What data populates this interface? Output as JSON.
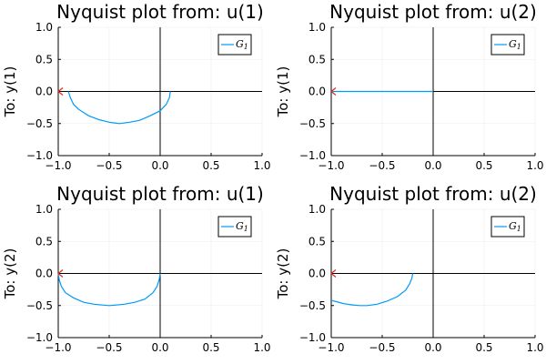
{
  "chart_data": [
    {
      "type": "line",
      "title": "Nyquist plot from: u(1)",
      "ylabel": "To: y(1)",
      "xlim": [
        -1,
        1
      ],
      "ylim": [
        -1,
        1
      ],
      "xticks": [
        "-1.0",
        "-0.5",
        "0.0",
        "0.5",
        "1.0"
      ],
      "yticks": [
        "-1.0",
        "-0.5",
        "0.0",
        "0.5",
        "1.0"
      ],
      "grid": true,
      "legend_position": "top-right",
      "series": [
        {
          "name": "G_1",
          "color": "#009AFA",
          "x": [
            0.1,
            0.09,
            0.06,
            0.0,
            -0.1,
            -0.2,
            -0.3,
            -0.4,
            -0.5,
            -0.6,
            -0.7,
            -0.8,
            -0.85,
            -0.88,
            -0.9
          ],
          "y": [
            0.0,
            -0.1,
            -0.2,
            -0.3,
            -0.38,
            -0.45,
            -0.48,
            -0.5,
            -0.48,
            -0.44,
            -0.38,
            -0.28,
            -0.2,
            -0.1,
            0.0
          ]
        }
      ],
      "critical_point": {
        "x": -1,
        "y": 0,
        "color": "#E0301E"
      }
    },
    {
      "type": "line",
      "title": "Nyquist plot from: u(2)",
      "ylabel": "To: y(1)",
      "xlim": [
        -1,
        1
      ],
      "ylim": [
        -1,
        1
      ],
      "xticks": [
        "-1.0",
        "-0.5",
        "0.0",
        "0.5",
        "1.0"
      ],
      "yticks": [
        "-1.0",
        "-0.5",
        "0.0",
        "0.5",
        "1.0"
      ],
      "grid": true,
      "legend_position": "top-right",
      "series": [
        {
          "name": "G_1",
          "color": "#009AFA",
          "x": [
            -1.0,
            0.0
          ],
          "y": [
            0.0,
            0.0
          ]
        }
      ],
      "critical_point": {
        "x": -1,
        "y": 0,
        "color": "#E0301E"
      }
    },
    {
      "type": "line",
      "title": "Nyquist plot from: u(1)",
      "ylabel": "To: y(2)",
      "xlim": [
        -1,
        1
      ],
      "ylim": [
        -1,
        1
      ],
      "xticks": [
        "-1.0",
        "-0.5",
        "0.0",
        "0.5",
        "1.0"
      ],
      "yticks": [
        "-1.0",
        "-0.5",
        "0.0",
        "0.5",
        "1.0"
      ],
      "grid": true,
      "legend_position": "top-right",
      "series": [
        {
          "name": "G_1",
          "color": "#009AFA",
          "x": [
            0.0,
            -0.01,
            -0.03,
            -0.07,
            -0.15,
            -0.25,
            -0.35,
            -0.5,
            -0.65,
            -0.75,
            -0.85,
            -0.93,
            -0.97,
            -0.99,
            -1.0
          ],
          "y": [
            0.0,
            -0.1,
            -0.2,
            -0.3,
            -0.4,
            -0.45,
            -0.48,
            -0.5,
            -0.48,
            -0.45,
            -0.38,
            -0.3,
            -0.2,
            -0.1,
            0.0
          ]
        }
      ],
      "critical_point": {
        "x": -1,
        "y": 0,
        "color": "#E0301E"
      }
    },
    {
      "type": "line",
      "title": "Nyquist plot from: u(2)",
      "ylabel": "To: y(2)",
      "xlim": [
        -1,
        1
      ],
      "ylim": [
        -1,
        1
      ],
      "xticks": [
        "-1.0",
        "-0.5",
        "0.0",
        "0.5",
        "1.0"
      ],
      "yticks": [
        "-1.0",
        "-0.5",
        "0.0",
        "0.5",
        "1.0"
      ],
      "grid": true,
      "legend_position": "top-right",
      "series": [
        {
          "name": "G_1",
          "color": "#009AFA",
          "x": [
            -0.2,
            -0.21,
            -0.23,
            -0.27,
            -0.35,
            -0.45,
            -0.55,
            -0.65,
            -0.72,
            -0.8,
            -0.88,
            -0.95,
            -1.0
          ],
          "y": [
            0.0,
            -0.08,
            -0.16,
            -0.26,
            -0.36,
            -0.43,
            -0.48,
            -0.5,
            -0.5,
            -0.49,
            -0.47,
            -0.44,
            -0.42
          ]
        }
      ],
      "critical_point": {
        "x": -1,
        "y": 0,
        "color": "#E0301E"
      }
    }
  ]
}
